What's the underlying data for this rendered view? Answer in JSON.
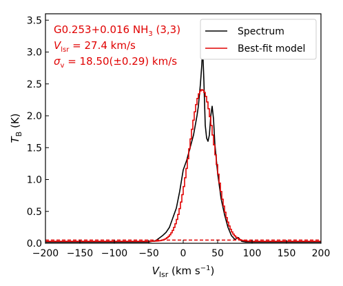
{
  "chart_data": {
    "type": "line",
    "annotations": {
      "line1_prefix": "G0.253+0.016 NH",
      "line1_sub": "3",
      "line1_suffix": " (3,3)",
      "line2_var": "V",
      "line2_sub": "lsr",
      "line2_rest": " = 27.4 km/s",
      "line3_var": "σ",
      "line3_sub": "v",
      "line3_rest": " = 18.50(±0.29) km/s"
    },
    "xlabel": {
      "var": "V",
      "sub": "lsr",
      "unit_prefix": " (km s",
      "unit_sup": "−1",
      "unit_suffix": ")"
    },
    "ylabel": {
      "var": "T",
      "sub": "B",
      "unit": " (K)"
    },
    "xlim": [
      -200,
      200
    ],
    "ylim": [
      0,
      3.6
    ],
    "xticks": [
      -200,
      -150,
      -100,
      -50,
      0,
      50,
      100,
      150,
      200
    ],
    "xtick_labels": [
      "−200",
      "−150",
      "−100",
      "−50",
      "0",
      "50",
      "100",
      "150",
      "200"
    ],
    "yticks": [
      0,
      0.5,
      1.0,
      1.5,
      2.0,
      2.5,
      3.0,
      3.5
    ],
    "ytick_labels": [
      "0.0",
      "0.5",
      "1.0",
      "1.5",
      "2.0",
      "2.5",
      "3.0",
      "3.5"
    ],
    "legend_position": "upper-right",
    "series": [
      {
        "name": "Spectrum",
        "color": "#000000",
        "style": "line",
        "x": [
          -200,
          -60,
          -50,
          -40,
          -35,
          -30,
          -25,
          -20,
          -15,
          -10,
          -5,
          0,
          5,
          10,
          15,
          20,
          22,
          25,
          27,
          28,
          29,
          30,
          31,
          32,
          34,
          36,
          38,
          40,
          42,
          44,
          46,
          50,
          55,
          60,
          65,
          70,
          75,
          80,
          85,
          90,
          100,
          200
        ],
        "y": [
          0.02,
          0.02,
          0.02,
          0.04,
          0.08,
          0.12,
          0.17,
          0.25,
          0.4,
          0.55,
          0.82,
          1.15,
          1.3,
          1.5,
          1.7,
          2.0,
          2.15,
          2.5,
          2.8,
          3.05,
          2.85,
          2.55,
          2.2,
          1.85,
          1.65,
          1.6,
          1.7,
          2.0,
          2.15,
          1.95,
          1.55,
          1.1,
          0.7,
          0.45,
          0.25,
          0.12,
          0.06,
          0.09,
          0.03,
          0.02,
          0.02,
          0.02
        ]
      },
      {
        "name": "Best-fit model",
        "color": "#e00000",
        "style": "steps",
        "mu": 27.4,
        "sigma": 18.5,
        "amplitude": 2.38,
        "baseline": 0.03,
        "step_width": 2
      },
      {
        "name": "",
        "color": "#e00000",
        "style": "dashed-hline",
        "y": 0.05
      }
    ]
  }
}
